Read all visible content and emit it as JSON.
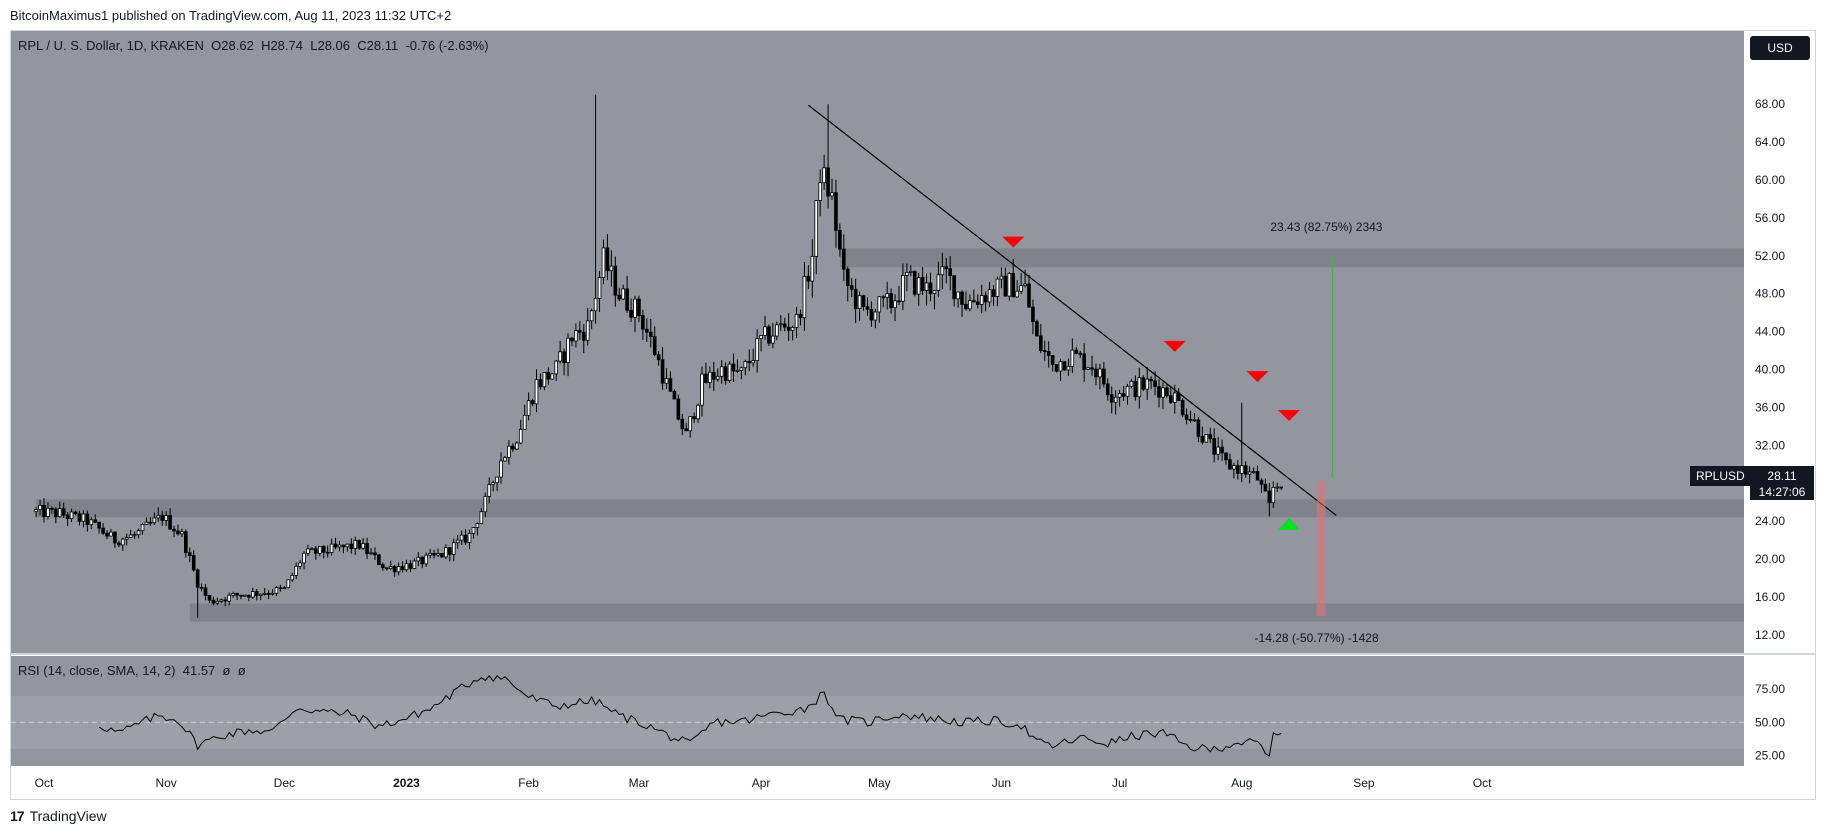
{
  "header": {
    "published_by": "BitcoinMaximus1 published on TradingView.com, Aug 11, 2023 11:32 UTC+2"
  },
  "legend": {
    "symbol": "RPL / U. S. Dollar, 1D, KRAKEN",
    "o_label": "O",
    "o_value": "28.62",
    "h_label": "H",
    "h_value": "28.74",
    "l_label": "L",
    "l_value": "28.06",
    "c_label": "C",
    "c_value": "28.11",
    "change": "-0.76 (-2.63%)"
  },
  "currency_button": "USD",
  "price_tag": {
    "symbol": "RPLUSD",
    "price": "28.11",
    "countdown": "14:27:06"
  },
  "rsi_legend": {
    "label": "RSI (14, close, SMA, 14, 2)",
    "value": "41.57",
    "extra1": "ø",
    "extra2": "ø"
  },
  "measure_up": "23.43 (82.75%) 2343",
  "measure_down": "-14.28 (-50.77%) -1428",
  "footer": {
    "brand": "TradingView",
    "logo": "17"
  },
  "colors": {
    "panel_bg": "#93969f",
    "band": "#7e818a",
    "up_marker": "#00e025",
    "down_marker": "#ff0000",
    "text": "#131722",
    "green_line": "#4caf50",
    "red_zone": "#e57373"
  },
  "chart_data": [
    {
      "type": "candlestick",
      "title": "RPL / U. S. Dollar, 1D, KRAKEN",
      "xlabel": "",
      "ylabel": "",
      "ylim": [
        10.4,
        71.4
      ],
      "x_ticks": [
        "Oct",
        "Nov",
        "Dec",
        "2023",
        "Feb",
        "Mar",
        "Apr",
        "May",
        "Jun",
        "Jul",
        "Aug",
        "Sep",
        "Oct"
      ],
      "x_tick_dates": [
        "2022-10-01",
        "2022-11-01",
        "2022-12-01",
        "2023-01-01",
        "2023-02-01",
        "2023-03-01",
        "2023-04-01",
        "2023-05-01",
        "2023-06-01",
        "2023-07-01",
        "2023-08-01",
        "2023-09-01",
        "2023-10-01"
      ],
      "y_ticks": [
        12,
        16,
        20,
        24,
        28,
        32,
        36,
        40,
        44,
        48,
        52,
        56,
        60,
        64,
        68
      ],
      "y_tick_labels": [
        "12.00",
        "16.00",
        "20.00",
        "24.00",
        "28.00",
        "32.00",
        "36.00",
        "40.00",
        "44.00",
        "48.00",
        "52.00",
        "56.00",
        "60.00",
        "64.00",
        "68.00"
      ],
      "grid": false,
      "close_series": [
        {
          "date": "2022-09-29",
          "close": 25.0
        },
        {
          "date": "2022-10-05",
          "close": 24.8
        },
        {
          "date": "2022-10-12",
          "close": 24.0
        },
        {
          "date": "2022-10-19",
          "close": 22.0
        },
        {
          "date": "2022-10-24",
          "close": 22.5
        },
        {
          "date": "2022-10-31",
          "close": 24.5
        },
        {
          "date": "2022-11-05",
          "close": 22.5
        },
        {
          "date": "2022-11-09",
          "close": 17.5
        },
        {
          "date": "2022-11-12",
          "close": 15.5
        },
        {
          "date": "2022-11-19",
          "close": 16.2
        },
        {
          "date": "2022-11-26",
          "close": 16.5
        },
        {
          "date": "2022-12-01",
          "close": 16.8
        },
        {
          "date": "2022-12-06",
          "close": 20.5
        },
        {
          "date": "2022-12-13",
          "close": 21.0
        },
        {
          "date": "2022-12-20",
          "close": 21.5
        },
        {
          "date": "2022-12-27",
          "close": 19.0
        },
        {
          "date": "2023-01-03",
          "close": 19.5
        },
        {
          "date": "2023-01-10",
          "close": 20.5
        },
        {
          "date": "2023-01-17",
          "close": 22.5
        },
        {
          "date": "2023-01-21",
          "close": 26.0
        },
        {
          "date": "2023-01-25",
          "close": 30.5
        },
        {
          "date": "2023-01-29",
          "close": 33.0
        },
        {
          "date": "2023-02-03",
          "close": 38.5
        },
        {
          "date": "2023-02-08",
          "close": 40.0
        },
        {
          "date": "2023-02-12",
          "close": 43.5
        },
        {
          "date": "2023-02-16",
          "close": 44.5
        },
        {
          "date": "2023-02-20",
          "close": 51.5
        },
        {
          "date": "2023-02-24",
          "close": 48.0
        },
        {
          "date": "2023-03-01",
          "close": 46.0
        },
        {
          "date": "2023-03-05",
          "close": 42.0
        },
        {
          "date": "2023-03-10",
          "close": 36.0
        },
        {
          "date": "2023-03-13",
          "close": 33.0
        },
        {
          "date": "2023-03-17",
          "close": 38.5
        },
        {
          "date": "2023-03-22",
          "close": 40.0
        },
        {
          "date": "2023-03-27",
          "close": 39.5
        },
        {
          "date": "2023-04-01",
          "close": 43.0
        },
        {
          "date": "2023-04-06",
          "close": 44.5
        },
        {
          "date": "2023-04-10",
          "close": 45.0
        },
        {
          "date": "2023-04-14",
          "close": 52.0
        },
        {
          "date": "2023-04-16",
          "close": 61.0
        },
        {
          "date": "2023-04-19",
          "close": 58.0
        },
        {
          "date": "2023-04-22",
          "close": 49.5
        },
        {
          "date": "2023-04-27",
          "close": 46.0
        },
        {
          "date": "2023-05-04",
          "close": 47.0
        },
        {
          "date": "2023-05-08",
          "close": 49.5
        },
        {
          "date": "2023-05-13",
          "close": 48.5
        },
        {
          "date": "2023-05-18",
          "close": 50.0
        },
        {
          "date": "2023-05-23",
          "close": 47.0
        },
        {
          "date": "2023-05-28",
          "close": 48.0
        },
        {
          "date": "2023-06-03",
          "close": 49.0
        },
        {
          "date": "2023-06-07",
          "close": 48.5
        },
        {
          "date": "2023-06-10",
          "close": 43.0
        },
        {
          "date": "2023-06-14",
          "close": 40.5
        },
        {
          "date": "2023-06-19",
          "close": 41.5
        },
        {
          "date": "2023-06-24",
          "close": 40.5
        },
        {
          "date": "2023-06-29",
          "close": 37.5
        },
        {
          "date": "2023-07-04",
          "close": 38.0
        },
        {
          "date": "2023-07-09",
          "close": 38.5
        },
        {
          "date": "2023-07-14",
          "close": 37.5
        },
        {
          "date": "2023-07-19",
          "close": 35.0
        },
        {
          "date": "2023-07-23",
          "close": 32.5
        },
        {
          "date": "2023-07-28",
          "close": 30.0
        },
        {
          "date": "2023-08-01",
          "close": 29.5
        },
        {
          "date": "2023-08-05",
          "close": 28.5
        },
        {
          "date": "2023-08-08",
          "close": 25.5
        },
        {
          "date": "2023-08-09",
          "close": 27.5
        },
        {
          "date": "2023-08-11",
          "close": 28.11
        }
      ],
      "spikes": [
        {
          "date": "2022-11-09",
          "low": 13.8
        },
        {
          "date": "2023-02-18",
          "high": 69.0
        },
        {
          "date": "2023-04-18",
          "high": 68.0
        },
        {
          "date": "2023-08-01",
          "high": 36.5
        },
        {
          "date": "2023-08-08",
          "low": 24.5
        }
      ],
      "horizontal_zones": [
        {
          "from": 24.4,
          "to": 26.3,
          "start": "2022-09-29"
        },
        {
          "from": 13.4,
          "to": 15.3,
          "start": "2022-11-07"
        },
        {
          "from": 50.8,
          "to": 52.8,
          "start": "2023-04-21"
        }
      ],
      "trendline": [
        {
          "date": "2023-04-13",
          "price": 67.9
        },
        {
          "date": "2023-08-25",
          "price": 24.6
        }
      ],
      "down_markers": [
        {
          "date": "2023-06-04",
          "price": 53.5
        },
        {
          "date": "2023-07-15",
          "price": 42.5
        },
        {
          "date": "2023-08-05",
          "price": 39.3
        },
        {
          "date": "2023-08-13",
          "price": 35.2
        }
      ],
      "up_markers": [
        {
          "date": "2023-08-13",
          "price": 23.7
        }
      ],
      "measure_up": {
        "date": "2023-08-24",
        "from": 28.6,
        "to": 52.0
      },
      "measure_down": {
        "date": "2023-08-21",
        "from": 28.2,
        "to": 14.0
      }
    },
    {
      "type": "line",
      "title": "RSI (14, close, SMA, 14, 2)",
      "ylim": [
        14,
        100
      ],
      "y_ticks": [
        25,
        50,
        75
      ],
      "y_tick_labels": [
        "25.00",
        "50.00",
        "75.00"
      ],
      "band": [
        30,
        70
      ],
      "mid": 50,
      "series": [
        {
          "values": [
            {
              "date": "2022-10-15",
              "rsi": 48
            },
            {
              "date": "2022-10-20",
              "rsi": 42
            },
            {
              "date": "2022-10-26",
              "rsi": 50
            },
            {
              "date": "2022-10-30",
              "rsi": 55
            },
            {
              "date": "2022-11-04",
              "rsi": 52
            },
            {
              "date": "2022-11-09",
              "rsi": 33
            },
            {
              "date": "2022-11-15",
              "rsi": 40
            },
            {
              "date": "2022-11-22",
              "rsi": 44
            },
            {
              "date": "2022-11-28",
              "rsi": 43
            },
            {
              "date": "2022-12-04",
              "rsi": 61
            },
            {
              "date": "2022-12-11",
              "rsi": 58
            },
            {
              "date": "2022-12-18",
              "rsi": 56
            },
            {
              "date": "2022-12-25",
              "rsi": 47
            },
            {
              "date": "2022-12-31",
              "rsi": 52
            },
            {
              "date": "2023-01-07",
              "rsi": 60
            },
            {
              "date": "2023-01-14",
              "rsi": 74
            },
            {
              "date": "2023-01-20",
              "rsi": 85
            },
            {
              "date": "2023-01-26",
              "rsi": 83
            },
            {
              "date": "2023-02-01",
              "rsi": 69
            },
            {
              "date": "2023-02-08",
              "rsi": 62
            },
            {
              "date": "2023-02-14",
              "rsi": 65
            },
            {
              "date": "2023-02-18",
              "rsi": 66
            },
            {
              "date": "2023-02-24",
              "rsi": 55
            },
            {
              "date": "2023-03-02",
              "rsi": 49
            },
            {
              "date": "2023-03-10",
              "rsi": 38
            },
            {
              "date": "2023-03-14",
              "rsi": 33
            },
            {
              "date": "2023-03-20",
              "rsi": 50
            },
            {
              "date": "2023-03-28",
              "rsi": 51
            },
            {
              "date": "2023-04-05",
              "rsi": 57
            },
            {
              "date": "2023-04-12",
              "rsi": 60
            },
            {
              "date": "2023-04-17",
              "rsi": 72
            },
            {
              "date": "2023-04-21",
              "rsi": 52
            },
            {
              "date": "2023-04-28",
              "rsi": 50
            },
            {
              "date": "2023-05-06",
              "rsi": 56
            },
            {
              "date": "2023-05-14",
              "rsi": 53
            },
            {
              "date": "2023-05-22",
              "rsi": 50
            },
            {
              "date": "2023-05-30",
              "rsi": 51
            },
            {
              "date": "2023-06-06",
              "rsi": 48
            },
            {
              "date": "2023-06-10",
              "rsi": 35
            },
            {
              "date": "2023-06-14",
              "rsi": 32
            },
            {
              "date": "2023-06-21",
              "rsi": 38
            },
            {
              "date": "2023-06-28",
              "rsi": 34
            },
            {
              "date": "2023-07-05",
              "rsi": 40
            },
            {
              "date": "2023-07-12",
              "rsi": 42
            },
            {
              "date": "2023-07-18",
              "rsi": 32
            },
            {
              "date": "2023-07-24",
              "rsi": 29
            },
            {
              "date": "2023-07-31",
              "rsi": 35
            },
            {
              "date": "2023-08-05",
              "rsi": 34
            },
            {
              "date": "2023-08-08",
              "rsi": 23
            },
            {
              "date": "2023-08-09",
              "rsi": 40
            },
            {
              "date": "2023-08-11",
              "rsi": 41.57
            }
          ]
        }
      ]
    }
  ]
}
